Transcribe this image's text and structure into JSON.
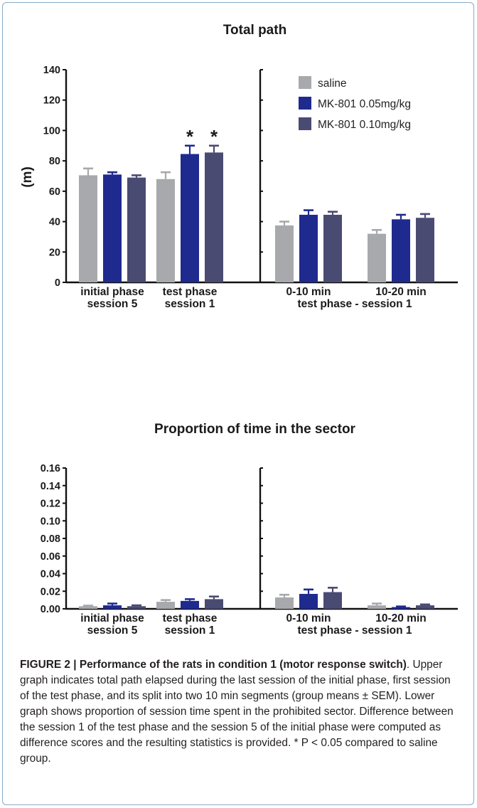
{
  "chart_data": [
    {
      "type": "bar",
      "title": "Total path",
      "ylabel": "(m)",
      "ylim": [
        0,
        140
      ],
      "yticks": [
        "0",
        "20",
        "40",
        "60",
        "80",
        "100",
        "120",
        "140"
      ],
      "panels": [
        {
          "categories": [
            [
              "initial phase",
              "session 5"
            ],
            [
              "test phase",
              "session 1"
            ]
          ],
          "group_label": ""
        },
        {
          "categories": [
            [
              "0-10 min"
            ],
            [
              "10-20 min"
            ]
          ],
          "group_label": "test phase - session 1"
        }
      ],
      "series": [
        {
          "name": "saline",
          "color": "#a7a9ac",
          "values": [
            70.5,
            68,
            37.5,
            32
          ],
          "errors": [
            4.5,
            4.5,
            2.5,
            2.5
          ]
        },
        {
          "name": "MK-801 0.05mg/kg",
          "color": "#1f2a8f",
          "values": [
            71,
            84.5,
            44.5,
            41.5
          ],
          "errors": [
            1.5,
            5.5,
            3,
            3
          ]
        },
        {
          "name": "MK-801 0.10mg/kg",
          "color": "#4a4b72",
          "values": [
            69,
            85.5,
            44.5,
            42.5
          ],
          "errors": [
            1.5,
            4.5,
            2,
            2.5
          ]
        }
      ],
      "annotations": [
        {
          "text": "*",
          "category": 1,
          "series": 1
        },
        {
          "text": "*",
          "category": 1,
          "series": 2
        }
      ],
      "legend": "top-right"
    },
    {
      "type": "bar",
      "title": "Proportion of time in the sector",
      "ylabel": "",
      "ylim": [
        0,
        0.16
      ],
      "yticks": [
        "0.00",
        "0.02",
        "0.04",
        "0.06",
        "0.08",
        "0.10",
        "0.12",
        "0.14",
        "0.16"
      ],
      "panels": [
        {
          "categories": [
            [
              "initial phase",
              "session 5"
            ],
            [
              "test phase",
              "session 1"
            ]
          ],
          "group_label": ""
        },
        {
          "categories": [
            [
              "0-10 min"
            ],
            [
              "10-20 min"
            ]
          ],
          "group_label": "test phase - session 1"
        }
      ],
      "series": [
        {
          "name": "saline",
          "color": "#a7a9ac",
          "values": [
            0.003,
            0.008,
            0.013,
            0.004
          ],
          "errors": [
            0.0007,
            0.002,
            0.003,
            0.002
          ]
        },
        {
          "name": "MK-801 0.05mg/kg",
          "color": "#1f2a8f",
          "values": [
            0.004,
            0.009,
            0.017,
            0.002
          ],
          "errors": [
            0.002,
            0.002,
            0.005,
            0.0007
          ]
        },
        {
          "name": "MK-801 0.10mg/kg",
          "color": "#4a4b72",
          "values": [
            0.003,
            0.011,
            0.019,
            0.004
          ],
          "errors": [
            0.001,
            0.003,
            0.005,
            0.001
          ]
        }
      ],
      "legend": "none"
    }
  ],
  "caption": {
    "label": "FIGURE 2 | Performance of the rats in condition 1 (motor response switch)",
    "text": ". Upper graph indicates total path elapsed during the last session of the initial phase, first session of the test phase, and its split into two 10 min segments (group means ± SEM). Lower graph shows proportion of session time spent in the prohibited sector. Difference between the session 1 of the test phase and the session 5 of the initial phase were computed as difference scores and the resulting statistics is provided. * P < 0.05 compared to saline group."
  }
}
